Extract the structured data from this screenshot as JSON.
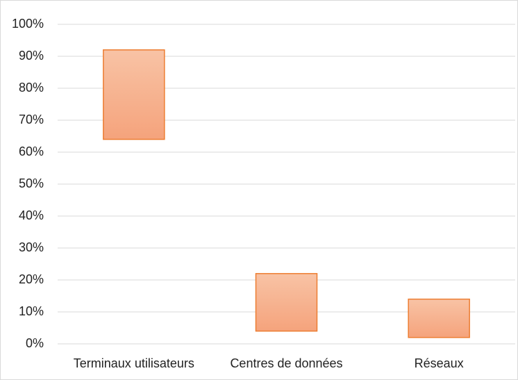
{
  "chart_data": {
    "type": "range_bar",
    "categories": [
      "Terminaux utilisateurs",
      "Centres de données",
      "Réseaux"
    ],
    "low": [
      64,
      4,
      2
    ],
    "high": [
      92,
      22,
      14
    ],
    "color": "#ed7d31",
    "ylim": [
      0,
      100
    ],
    "yticks": [
      {
        "value": 0,
        "label": "0%"
      },
      {
        "value": 10,
        "label": "10%"
      },
      {
        "value": 20,
        "label": "20%"
      },
      {
        "value": 30,
        "label": "30%"
      },
      {
        "value": 40,
        "label": "40%"
      },
      {
        "value": 50,
        "label": "50%"
      },
      {
        "value": 60,
        "label": "60%"
      },
      {
        "value": 70,
        "label": "70%"
      },
      {
        "value": 80,
        "label": "80%"
      },
      {
        "value": 90,
        "label": "90%"
      },
      {
        "value": 100,
        "label": "100%"
      }
    ],
    "grid": true
  }
}
